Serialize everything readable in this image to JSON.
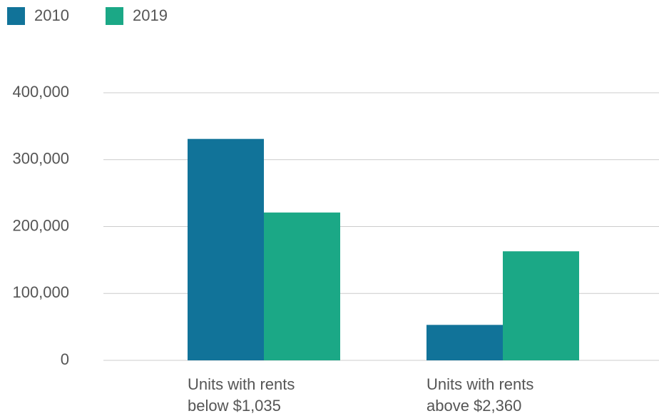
{
  "chart_data": {
    "type": "bar",
    "categories": [
      "Units with rents below $1,035",
      "Units with rents above $2,360"
    ],
    "series": [
      {
        "name": "2010",
        "color": "#117399",
        "values": [
          331000,
          53000
        ]
      },
      {
        "name": "2019",
        "color": "#1ba886",
        "values": [
          221000,
          163000
        ]
      }
    ],
    "ylim": [
      0,
      400000
    ],
    "yticks": [
      0,
      {
        "value": 100000,
        "label": "100,000"
      },
      {
        "value": 200000,
        "label": "200,000"
      },
      {
        "value": 300000,
        "label": "300,000"
      },
      {
        "value": 400000,
        "label": "400,000"
      }
    ],
    "grid": true,
    "legend": "top-left"
  }
}
